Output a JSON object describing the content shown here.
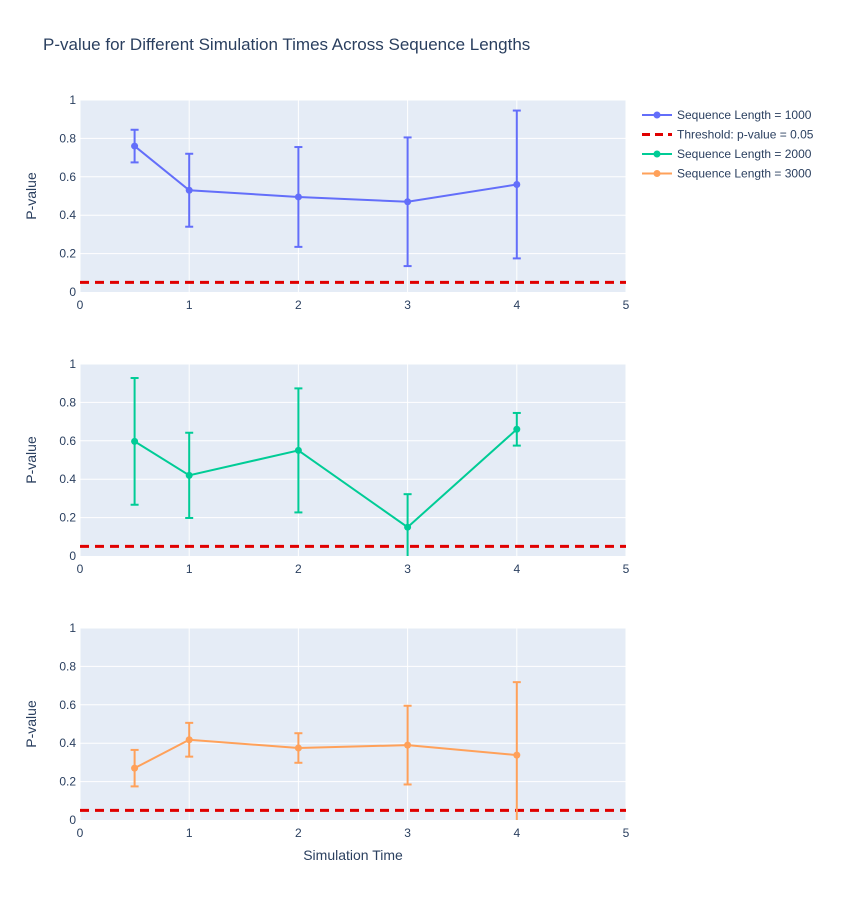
{
  "chart_data": {
    "type": "line",
    "title": "P-value for Different Simulation Times Across Sequence Lengths",
    "xlabel": "Simulation Time",
    "ylabel": "P-value",
    "xlim": [
      0,
      5
    ],
    "ylim": [
      0,
      1
    ],
    "x_ticks": [
      "0",
      "1",
      "2",
      "3",
      "4",
      "5"
    ],
    "y_ticks": [
      "0",
      "0.2",
      "0.4",
      "0.6",
      "0.8",
      "1"
    ],
    "grid": true,
    "legend_position": "top-right",
    "threshold": {
      "name": "Threshold: p-value = 0.05",
      "value": 0.05,
      "color": "#e00000"
    },
    "x": [
      0.5,
      1,
      2,
      3,
      4
    ],
    "series": [
      {
        "name": "Sequence Length = 1000",
        "color": "#636efa",
        "values": [
          0.76,
          0.53,
          0.495,
          0.47,
          0.56
        ],
        "error": [
          0.085,
          0.19,
          0.26,
          0.335,
          0.385
        ]
      },
      {
        "name": "Sequence Length = 2000",
        "color": "#00cc96",
        "values": [
          0.597,
          0.42,
          0.55,
          0.15,
          0.66
        ],
        "error": [
          0.33,
          0.222,
          0.323,
          0.172,
          0.085
        ]
      },
      {
        "name": "Sequence Length = 3000",
        "color": "#ffa15a",
        "values": [
          0.27,
          0.418,
          0.375,
          0.39,
          0.338
        ],
        "error": [
          0.095,
          0.088,
          0.077,
          0.205,
          0.38
        ]
      }
    ]
  }
}
